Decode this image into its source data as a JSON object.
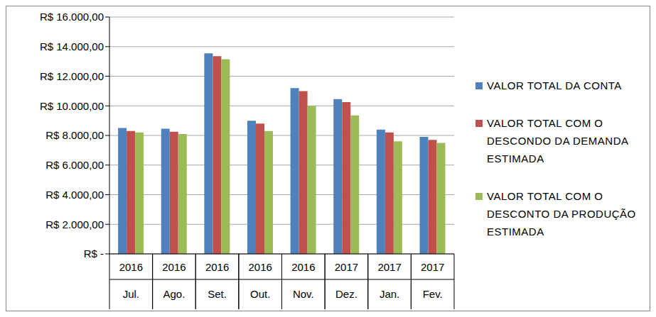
{
  "chart_data": {
    "type": "bar",
    "categories": [
      [
        "2016",
        "Jul."
      ],
      [
        "2016",
        "Ago."
      ],
      [
        "2016",
        "Set."
      ],
      [
        "2016",
        "Out."
      ],
      [
        "2016",
        "Nov."
      ],
      [
        "2017",
        "Dez."
      ],
      [
        "2017",
        "Jan."
      ],
      [
        "2017",
        "Fev."
      ]
    ],
    "series": [
      {
        "name": "VALOR TOTAL DA CONTA",
        "color": "#4f81bd",
        "values": [
          8500,
          8450,
          13550,
          9000,
          11200,
          10450,
          8400,
          7900
        ]
      },
      {
        "name": "VALOR TOTAL COM O DESCONDO DA DEMANDA ESTIMADA",
        "color": "#c0504d",
        "values": [
          8300,
          8250,
          13350,
          8800,
          11000,
          10250,
          8200,
          7700
        ]
      },
      {
        "name": "VALOR TOTAL COM O DESCONTO DA PRODUÇÃO ESTIMADA",
        "color": "#9bbb59",
        "values": [
          8200,
          8100,
          13150,
          8300,
          10000,
          9350,
          7600,
          7500
        ]
      }
    ],
    "ylim": [
      0,
      16000
    ],
    "yticks": [
      {
        "value": 0,
        "label": "R$ -"
      },
      {
        "value": 2000,
        "label": "R$ 2.000,00"
      },
      {
        "value": 4000,
        "label": "R$ 4.000,00"
      },
      {
        "value": 6000,
        "label": "R$ 6.000,00"
      },
      {
        "value": 8000,
        "label": "R$ 8.000,00"
      },
      {
        "value": 10000,
        "label": "R$ 10.000,00"
      },
      {
        "value": 12000,
        "label": "R$ 12.000,00"
      },
      {
        "value": 14000,
        "label": "R$ 14.000,00"
      },
      {
        "value": 16000,
        "label": "R$ 16.000,00"
      }
    ],
    "grid": true,
    "legend": "right"
  }
}
